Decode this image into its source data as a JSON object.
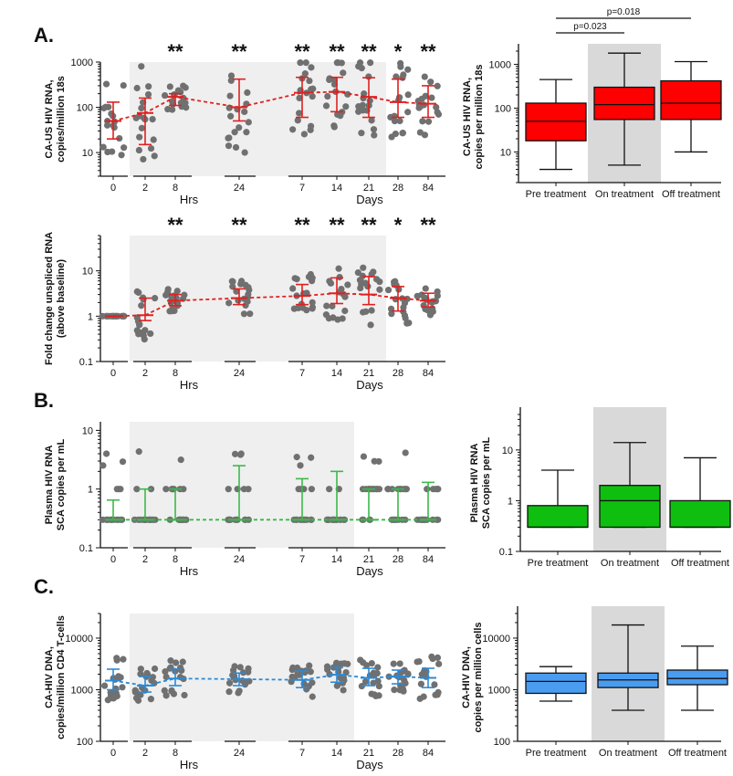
{
  "panel_labels": {
    "a": "A.",
    "b": "B.",
    "c": "C."
  },
  "x_group_labels": {
    "hrs": "Hrs",
    "days": "Days"
  },
  "chart_data": [
    {
      "id": "A1",
      "type": "scatter",
      "scale": "log",
      "ylabel": [
        "CA-US HIV RNA,",
        "copies/million 18s"
      ],
      "ylim": [
        3,
        1000
      ],
      "yticks": [
        10,
        100,
        1000
      ],
      "categories": [
        "0",
        "2",
        "8",
        "24",
        "7",
        "14",
        "21",
        "28",
        "84"
      ],
      "significance": [
        "",
        "",
        "**",
        "**",
        "**",
        "**",
        "**",
        "*",
        "**"
      ],
      "median": [
        50,
        75,
        170,
        100,
        210,
        220,
        170,
        130,
        120
      ],
      "iqr": [
        [
          20,
          130
        ],
        [
          15,
          160
        ],
        [
          110,
          200
        ],
        [
          50,
          420
        ],
        [
          60,
          460
        ],
        [
          80,
          460
        ],
        [
          60,
          450
        ],
        [
          60,
          420
        ],
        [
          60,
          300
        ]
      ],
      "line_color": "#e02020",
      "shaded_categories": [
        1,
        6
      ]
    },
    {
      "id": "A2",
      "type": "scatter",
      "scale": "log",
      "ylabel": [
        "Fold change unspliced RNA",
        "(above baseline)"
      ],
      "ylim": [
        0.1,
        60
      ],
      "yticks": [
        0.1,
        1,
        10
      ],
      "categories": [
        "0",
        "2",
        "8",
        "24",
        "7",
        "14",
        "21",
        "28",
        "84"
      ],
      "significance": [
        "",
        "",
        "**",
        "**",
        "**",
        "**",
        "**",
        "*",
        "**"
      ],
      "median": [
        1,
        1.05,
        2.2,
        2.5,
        2.8,
        3.2,
        3.0,
        2.5,
        2.2
      ],
      "iqr": [
        [
          1,
          1
        ],
        [
          0.8,
          2.5
        ],
        [
          1.7,
          3
        ],
        [
          1.8,
          4
        ],
        [
          1.8,
          5
        ],
        [
          1.9,
          7
        ],
        [
          1.8,
          7.5
        ],
        [
          1.3,
          4.5
        ],
        [
          1.6,
          3.2
        ]
      ],
      "line_color": "#e02020",
      "shaded_categories": [
        1,
        6
      ]
    },
    {
      "id": "B1",
      "type": "scatter",
      "scale": "log",
      "ylabel": [
        "Plasma HIV RNA",
        "SCA copies per mL"
      ],
      "ylim": [
        0.1,
        14
      ],
      "yticks": [
        0.1,
        1,
        10
      ],
      "categories": [
        "0",
        "2",
        "8",
        "24",
        "7",
        "14",
        "21",
        "28",
        "84"
      ],
      "median": [
        0.3,
        0.3,
        0.3,
        0.3,
        0.3,
        0.3,
        0.3,
        0.3,
        0.3
      ],
      "iqr": [
        [
          0.3,
          0.65
        ],
        [
          0.3,
          1
        ],
        [
          0.3,
          1
        ],
        [
          0.3,
          2.5
        ],
        [
          0.3,
          1.5
        ],
        [
          0.3,
          2
        ],
        [
          0.3,
          1
        ],
        [
          0.3,
          1
        ],
        [
          0.3,
          1.3
        ]
      ],
      "line_color": "#3cb94a",
      "shaded_categories": [
        1,
        5
      ]
    },
    {
      "id": "C1",
      "type": "scatter",
      "scale": "log",
      "ylabel": [
        "CA-HIV DNA,",
        "copies/million CD4 T-cells"
      ],
      "ylim": [
        100,
        30000
      ],
      "yticks": [
        100,
        1000,
        10000
      ],
      "categories": [
        "0",
        "2",
        "8",
        "24",
        "7",
        "14",
        "21",
        "28",
        "84"
      ],
      "median": [
        1500,
        1200,
        1650,
        1600,
        1550,
        1950,
        1700,
        1800,
        1700
      ],
      "iqr": [
        [
          1000,
          2500
        ],
        [
          900,
          1800
        ],
        [
          1200,
          2500
        ],
        [
          1200,
          2100
        ],
        [
          1100,
          2300
        ],
        [
          1400,
          2700
        ],
        [
          1200,
          2600
        ],
        [
          1300,
          2400
        ],
        [
          1100,
          2600
        ]
      ],
      "line_color": "#2a8ad8",
      "shaded_categories": [
        1,
        5
      ]
    },
    {
      "id": "A3",
      "type": "box",
      "scale": "log",
      "ylabel": [
        "CA-US HIV RNA,",
        "copies per million 18s"
      ],
      "ylim": [
        2,
        2000
      ],
      "yticks": [
        10,
        100,
        1000
      ],
      "categories": [
        "Pre treatment",
        "On treatment",
        "Off treatment"
      ],
      "boxes": [
        {
          "min": 4,
          "q1": 18,
          "median": 50,
          "q3": 130,
          "max": 450
        },
        {
          "min": 5,
          "q1": 55,
          "median": 120,
          "q3": 300,
          "max": 1800
        },
        {
          "min": 10,
          "q1": 55,
          "median": 130,
          "q3": 420,
          "max": 1150
        }
      ],
      "box_color": "#ff0000",
      "shaded_category": 1,
      "comparisons": [
        {
          "from": 0,
          "to": 1,
          "label": "p=0.023"
        },
        {
          "from": 0,
          "to": 2,
          "label": "p=0.018"
        }
      ]
    },
    {
      "id": "B2",
      "type": "box",
      "scale": "log",
      "ylabel": [
        "Plasma HIV RNA",
        "SCA copies per mL"
      ],
      "ylim": [
        0.1,
        50
      ],
      "yticks": [
        0.1,
        1,
        10
      ],
      "categories": [
        "Pre treatment",
        "On treatment",
        "Off treatment"
      ],
      "boxes": [
        {
          "min": 0.3,
          "q1": 0.3,
          "median": 0.3,
          "q3": 0.8,
          "max": 4
        },
        {
          "min": 0.3,
          "q1": 0.3,
          "median": 1.0,
          "q3": 2.0,
          "max": 14
        },
        {
          "min": 0.3,
          "q1": 0.3,
          "median": 0.3,
          "q3": 1.0,
          "max": 7
        }
      ],
      "box_color": "#0fbf0f",
      "shaded_category": 1
    },
    {
      "id": "C2",
      "type": "box",
      "scale": "log",
      "ylabel": [
        "CA-HIV DNA,",
        "copies per million cells"
      ],
      "ylim": [
        100,
        30000
      ],
      "yticks": [
        100,
        1000,
        10000
      ],
      "categories": [
        "Pre treatment",
        "On treatment",
        "Off treatment"
      ],
      "boxes": [
        {
          "min": 600,
          "q1": 850,
          "median": 1450,
          "q3": 2100,
          "max": 2800
        },
        {
          "min": 400,
          "q1": 1100,
          "median": 1550,
          "q3": 2100,
          "max": 18000
        },
        {
          "min": 400,
          "q1": 1250,
          "median": 1650,
          "q3": 2400,
          "max": 7000
        }
      ],
      "box_color": "#4a9cf0",
      "shaded_category": 1
    }
  ]
}
